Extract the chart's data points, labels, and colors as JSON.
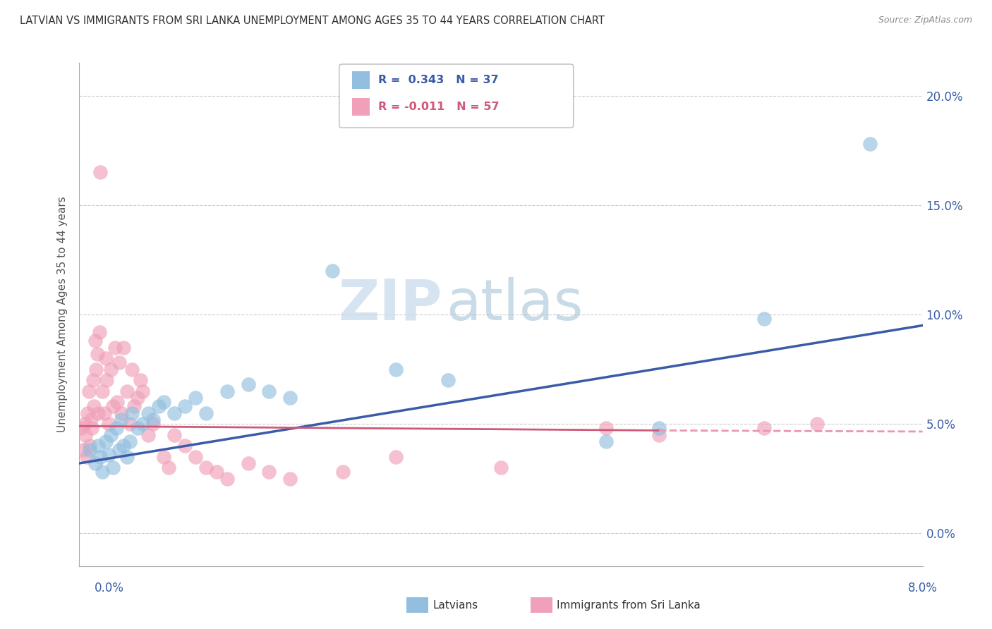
{
  "title": "LATVIAN VS IMMIGRANTS FROM SRI LANKA UNEMPLOYMENT AMONG AGES 35 TO 44 YEARS CORRELATION CHART",
  "source": "Source: ZipAtlas.com",
  "ylabel": "Unemployment Among Ages 35 to 44 years",
  "xlim": [
    0.0,
    8.0
  ],
  "ylim": [
    -1.5,
    21.5
  ],
  "yticks": [
    0.0,
    5.0,
    10.0,
    15.0,
    20.0
  ],
  "ytick_labels": [
    "0.0%",
    "5.0%",
    "10.0%",
    "15.0%",
    "20.0%"
  ],
  "blue_color": "#92bfdf",
  "pink_color": "#f0a0b8",
  "blue_line_color": "#3a5ca8",
  "pink_line_color": "#d05878",
  "pink_line_solid_color": "#d05878",
  "pink_line_dash_color": "#e898b0",
  "watermark_zip_color": "#c5d8ea",
  "watermark_atlas_color": "#a8c4da",
  "background_color": "#ffffff",
  "grid_color": "#cccccc",
  "legend_R1": "0.343",
  "legend_N1": "37",
  "legend_R2": "-0.011",
  "legend_N2": "57",
  "blue_scatter": [
    [
      0.1,
      3.8
    ],
    [
      0.15,
      3.2
    ],
    [
      0.18,
      4.0
    ],
    [
      0.2,
      3.5
    ],
    [
      0.22,
      2.8
    ],
    [
      0.25,
      4.2
    ],
    [
      0.28,
      3.6
    ],
    [
      0.3,
      4.5
    ],
    [
      0.32,
      3.0
    ],
    [
      0.35,
      4.8
    ],
    [
      0.38,
      3.8
    ],
    [
      0.4,
      5.2
    ],
    [
      0.42,
      4.0
    ],
    [
      0.45,
      3.5
    ],
    [
      0.48,
      4.2
    ],
    [
      0.5,
      5.5
    ],
    [
      0.55,
      4.8
    ],
    [
      0.6,
      5.0
    ],
    [
      0.65,
      5.5
    ],
    [
      0.7,
      5.2
    ],
    [
      0.75,
      5.8
    ],
    [
      0.8,
      6.0
    ],
    [
      0.9,
      5.5
    ],
    [
      1.0,
      5.8
    ],
    [
      1.1,
      6.2
    ],
    [
      1.2,
      5.5
    ],
    [
      1.4,
      6.5
    ],
    [
      1.6,
      6.8
    ],
    [
      1.8,
      6.5
    ],
    [
      2.0,
      6.2
    ],
    [
      2.4,
      12.0
    ],
    [
      3.0,
      7.5
    ],
    [
      3.5,
      7.0
    ],
    [
      5.0,
      4.2
    ],
    [
      5.5,
      4.8
    ],
    [
      6.5,
      9.8
    ],
    [
      7.5,
      17.8
    ]
  ],
  "pink_scatter": [
    [
      0.02,
      4.8
    ],
    [
      0.04,
      3.8
    ],
    [
      0.05,
      5.0
    ],
    [
      0.06,
      4.5
    ],
    [
      0.07,
      3.5
    ],
    [
      0.08,
      5.5
    ],
    [
      0.09,
      6.5
    ],
    [
      0.1,
      4.0
    ],
    [
      0.11,
      5.2
    ],
    [
      0.12,
      4.8
    ],
    [
      0.13,
      7.0
    ],
    [
      0.14,
      5.8
    ],
    [
      0.15,
      8.8
    ],
    [
      0.16,
      7.5
    ],
    [
      0.17,
      8.2
    ],
    [
      0.18,
      5.5
    ],
    [
      0.19,
      9.2
    ],
    [
      0.2,
      16.5
    ],
    [
      0.22,
      6.5
    ],
    [
      0.24,
      5.5
    ],
    [
      0.25,
      8.0
    ],
    [
      0.26,
      7.0
    ],
    [
      0.28,
      5.0
    ],
    [
      0.3,
      7.5
    ],
    [
      0.32,
      5.8
    ],
    [
      0.34,
      8.5
    ],
    [
      0.36,
      6.0
    ],
    [
      0.38,
      7.8
    ],
    [
      0.4,
      5.5
    ],
    [
      0.42,
      8.5
    ],
    [
      0.45,
      6.5
    ],
    [
      0.48,
      5.0
    ],
    [
      0.5,
      7.5
    ],
    [
      0.52,
      5.8
    ],
    [
      0.55,
      6.2
    ],
    [
      0.58,
      7.0
    ],
    [
      0.6,
      6.5
    ],
    [
      0.65,
      4.5
    ],
    [
      0.7,
      5.0
    ],
    [
      0.8,
      3.5
    ],
    [
      0.85,
      3.0
    ],
    [
      0.9,
      4.5
    ],
    [
      1.0,
      4.0
    ],
    [
      1.1,
      3.5
    ],
    [
      1.2,
      3.0
    ],
    [
      1.3,
      2.8
    ],
    [
      1.4,
      2.5
    ],
    [
      1.6,
      3.2
    ],
    [
      1.8,
      2.8
    ],
    [
      2.0,
      2.5
    ],
    [
      2.5,
      2.8
    ],
    [
      3.0,
      3.5
    ],
    [
      4.0,
      3.0
    ],
    [
      5.0,
      4.8
    ],
    [
      5.5,
      4.5
    ],
    [
      6.5,
      4.8
    ],
    [
      7.0,
      5.0
    ]
  ],
  "blue_line_x0": 0.0,
  "blue_line_y0": 3.2,
  "blue_line_x1": 8.0,
  "blue_line_y1": 9.5,
  "pink_solid_x0": 0.0,
  "pink_solid_y0": 4.9,
  "pink_solid_x1": 5.5,
  "pink_solid_y1": 4.7,
  "pink_dash_x0": 5.5,
  "pink_dash_y0": 4.7,
  "pink_dash_x1": 8.0,
  "pink_dash_y1": 4.65
}
